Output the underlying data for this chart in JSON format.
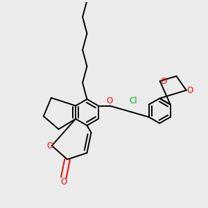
{
  "bg_color": "#ebebeb",
  "bond_color": "#000000",
  "oxygen_color": "#ff0000",
  "chlorine_color": "#00aa00",
  "lw": 1.4,
  "fs": 8.5,
  "xlim": [
    -2.6,
    2.9
  ],
  "ylim": [
    -2.3,
    3.1
  ]
}
